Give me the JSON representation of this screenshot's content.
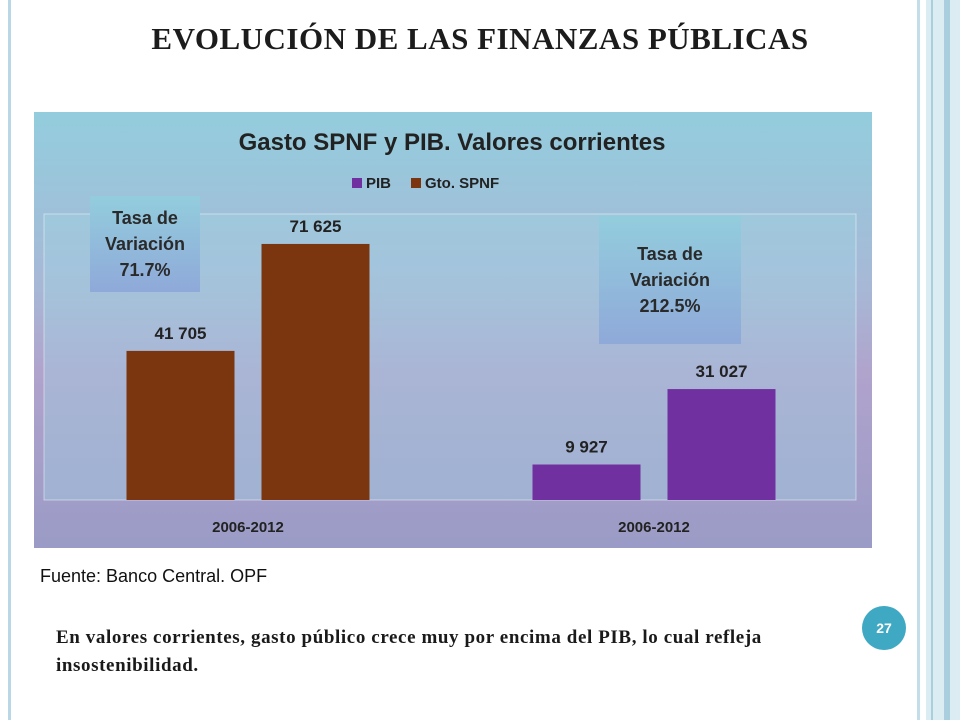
{
  "slide": {
    "title": "EVOLUCIÓN DE LAS FINANZAS PÚBLICAS",
    "source": "Fuente: Banco Central. OPF",
    "conclusion": "En valores corrientes, gasto público crece muy por encima del PIB, lo cual refleja insostenibilidad.",
    "page_number": "27"
  },
  "rate_boxes": [
    {
      "text": "Tasa de\nVariación\n71.7%"
    },
    {
      "text": "Tasa de\nVariación\n212.5%"
    }
  ],
  "chart_data": {
    "type": "bar",
    "title": "Gasto SPNF y PIB. Valores corrientes",
    "legend": {
      "position": "top",
      "entries": [
        {
          "name": "PIB",
          "color": "#7030a0"
        },
        {
          "name": "Gto. SPNF",
          "color": "#7b3610"
        }
      ]
    },
    "ylim": [
      0,
      80000
    ],
    "grid": false,
    "groups": [
      {
        "label": "2006-2012",
        "bars": [
          {
            "value": 41705,
            "label": "41 705",
            "color": "#7b3610"
          },
          {
            "value": 71625,
            "label": "71 625",
            "color": "#7b3610"
          }
        ]
      },
      {
        "label": "2006-2012",
        "bars": [
          {
            "value": 9927,
            "label": "9 927",
            "color": "#7030a0"
          },
          {
            "value": 31027,
            "label": "31 027",
            "color": "#7030a0"
          }
        ]
      }
    ]
  }
}
